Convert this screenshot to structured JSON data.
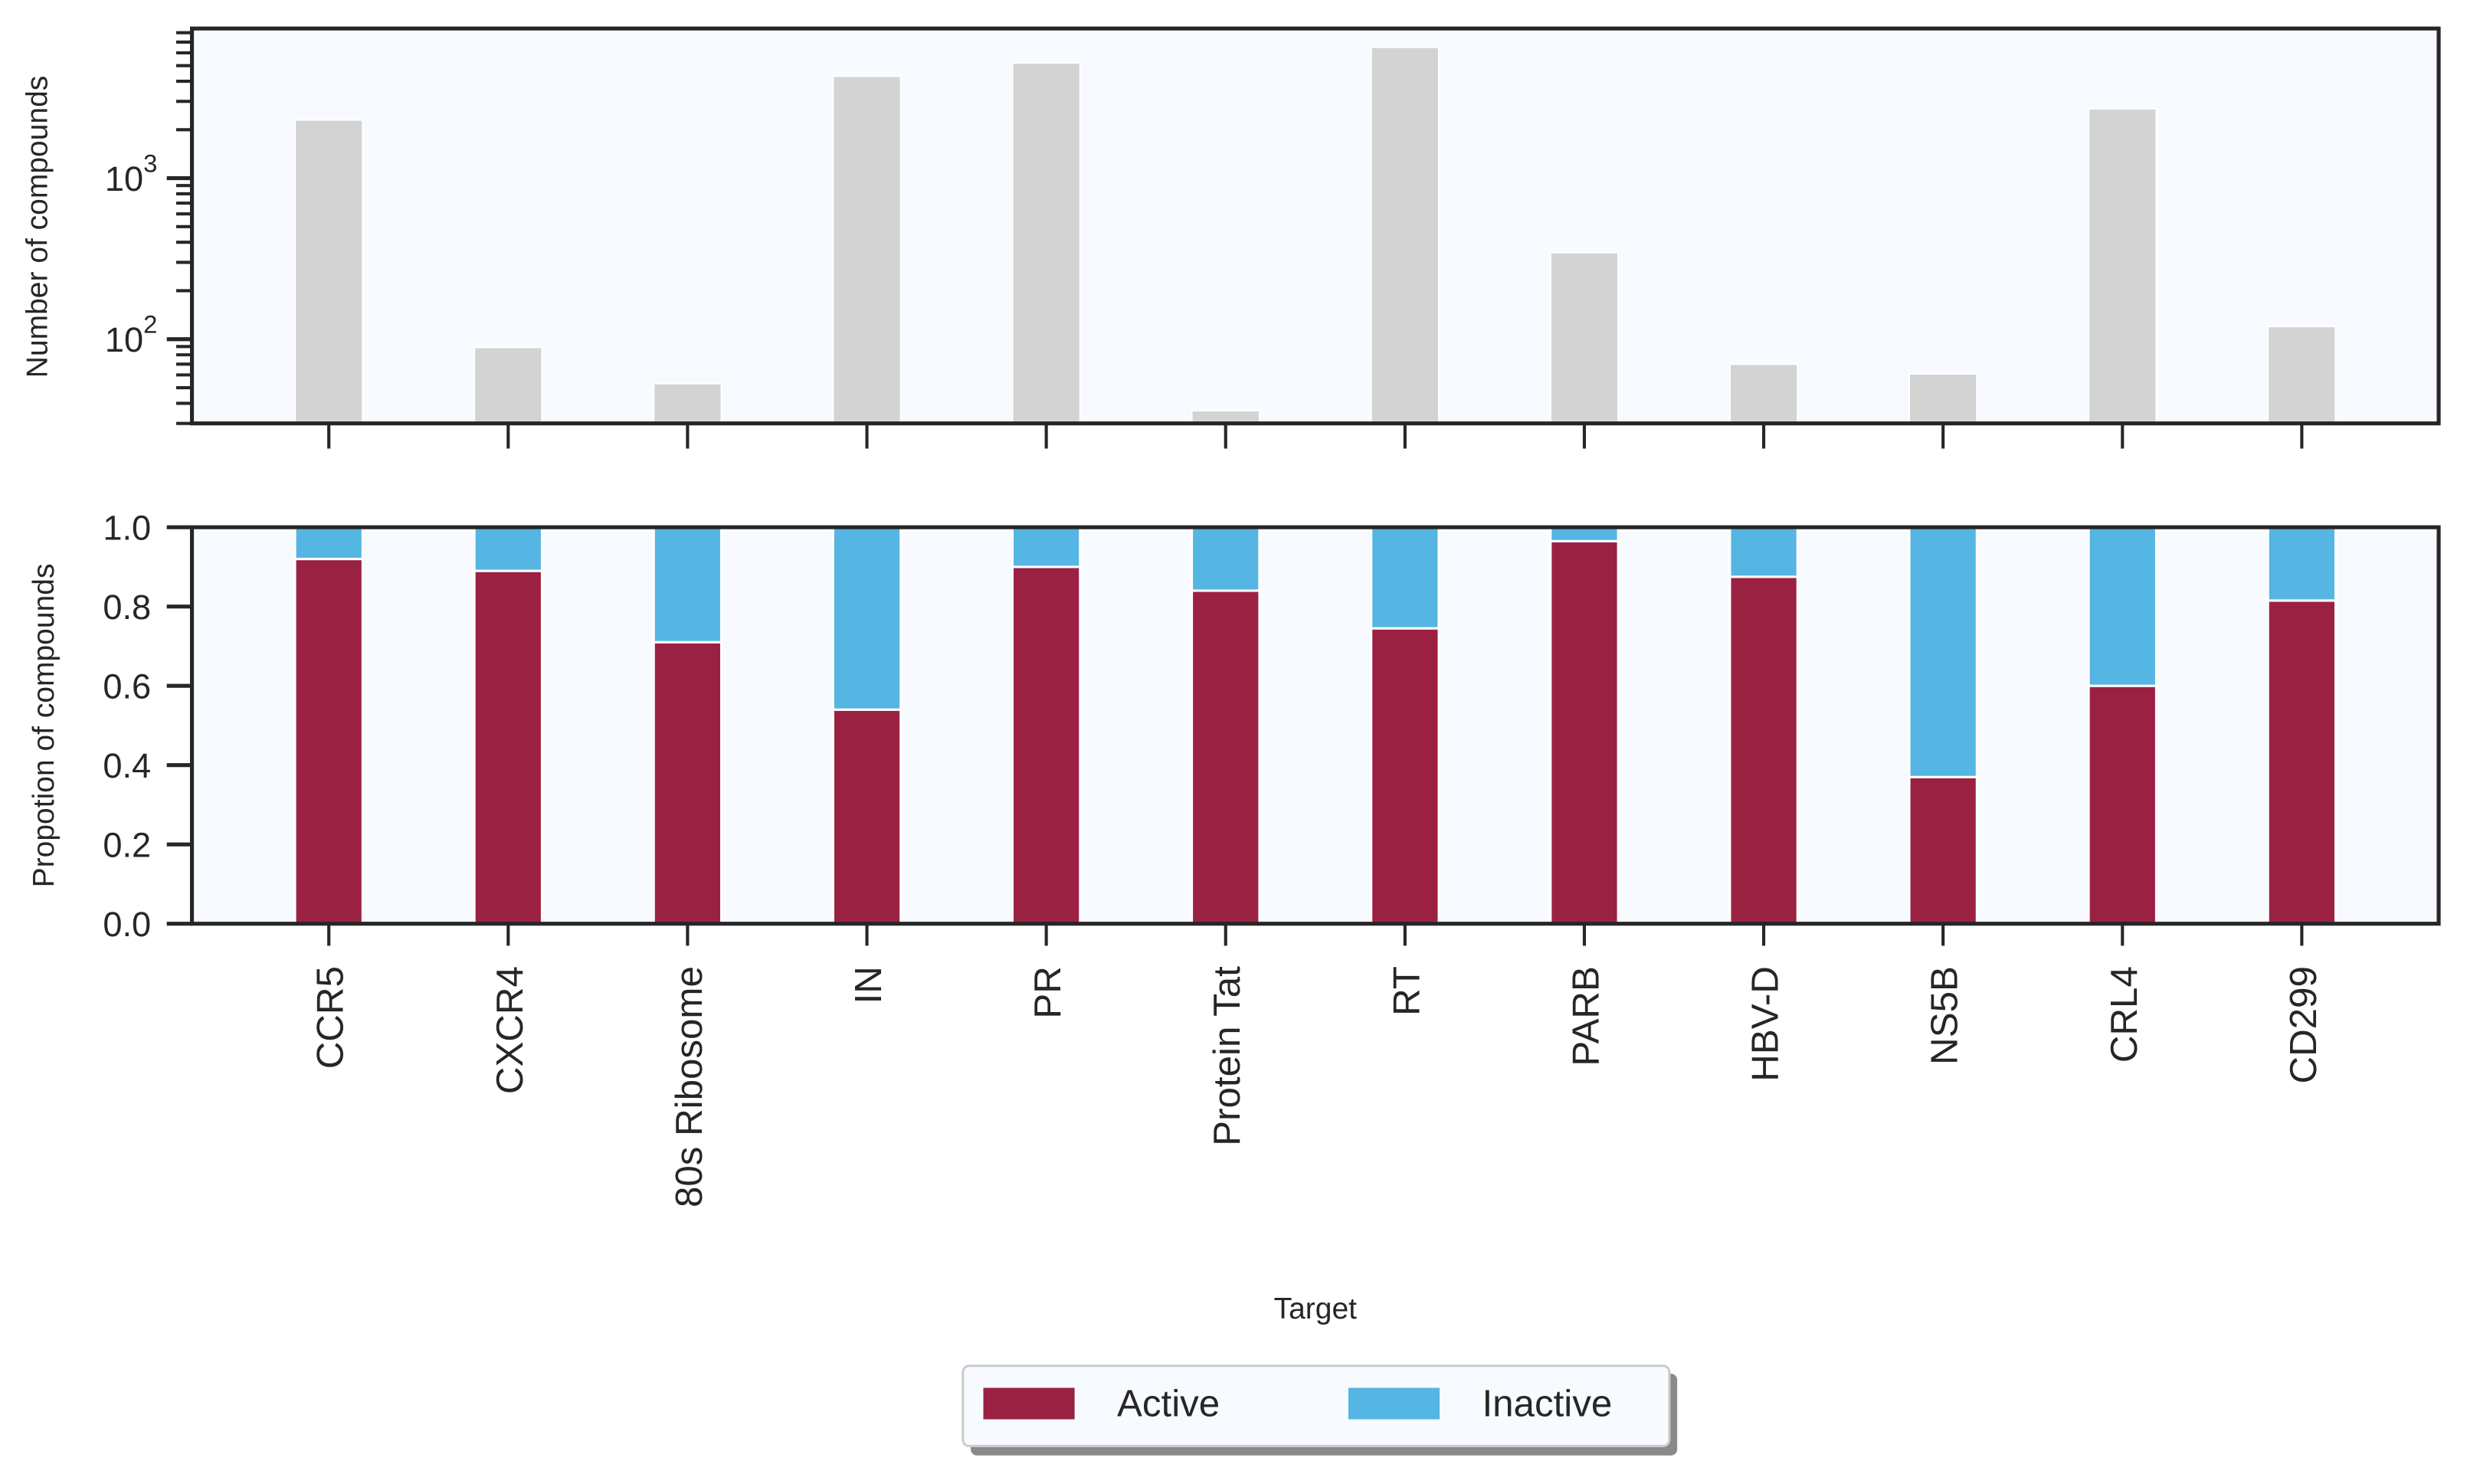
{
  "chart_data": [
    {
      "type": "bar",
      "scale": "log",
      "ylabel": "Number of compounds",
      "xlabel": "",
      "ylim": [
        30,
        8500
      ],
      "yticks": [
        {
          "value": 100,
          "base": "10",
          "exp": "2"
        },
        {
          "value": 1000,
          "base": "10",
          "exp": "3"
        }
      ],
      "categories": [
        "CCR5",
        "CXCR4",
        "80s Ribosome",
        "IN",
        "PR",
        "Protein Tat",
        "RT",
        "PARB",
        "HBV-D",
        "NS5B",
        "CRL4",
        "CD299"
      ],
      "values": [
        2300,
        89,
        53,
        4300,
        5200,
        36,
        6500,
        345,
        70,
        61,
        2700,
        120
      ],
      "color": "#d3d3d3",
      "background": "#f7fafe",
      "grid": false
    },
    {
      "type": "bar",
      "stacked": true,
      "ylabel": "Propotion of compounds",
      "xlabel": "Target",
      "ylim": [
        0,
        1
      ],
      "yticks": [
        "0.0",
        "0.2",
        "0.4",
        "0.6",
        "0.8",
        "1.0"
      ],
      "categories": [
        "CCR5",
        "CXCR4",
        "80s Ribosome",
        "IN",
        "PR",
        "Protein Tat",
        "RT",
        "PARB",
        "HBV-D",
        "NS5B",
        "CRL4",
        "CD299"
      ],
      "series": [
        {
          "name": "Active",
          "color": "#9b2143",
          "values": [
            0.92,
            0.89,
            0.71,
            0.54,
            0.9,
            0.84,
            0.745,
            0.965,
            0.875,
            0.37,
            0.6,
            0.815
          ]
        },
        {
          "name": "Inactive",
          "color": "#55b5e3",
          "values": [
            0.08,
            0.11,
            0.29,
            0.46,
            0.1,
            0.16,
            0.255,
            0.035,
            0.125,
            0.63,
            0.4,
            0.185
          ]
        }
      ],
      "legend": "bottom-center",
      "background": "#f7fafe",
      "grid": false
    }
  ]
}
